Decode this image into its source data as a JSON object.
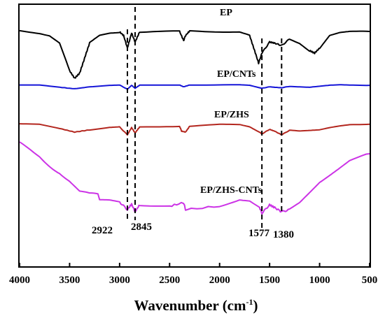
{
  "chart_data": {
    "type": "line",
    "xlabel": "Wavenumber (cm",
    "xlabel_sup": "-1",
    "xlabel_close": ")",
    "xlim": [
      4000,
      500
    ],
    "x_ticks": [
      "4000",
      "3500",
      "3000",
      "2500",
      "2000",
      "1500",
      "1000",
      "500"
    ],
    "y_ticks_shown": false,
    "grid": false,
    "peak_markers": [
      {
        "wavenumber": 2922,
        "label": "2922"
      },
      {
        "wavenumber": 2845,
        "label": "2845"
      },
      {
        "wavenumber": 1577,
        "label": "1577"
      },
      {
        "wavenumber": 1380,
        "label": "1380"
      }
    ],
    "series": [
      {
        "name": "EP",
        "color": "#000000",
        "points": [
          [
            4000,
            0.95
          ],
          [
            3800,
            0.9
          ],
          [
            3700,
            0.85
          ],
          [
            3600,
            0.7
          ],
          [
            3500,
            0.15
          ],
          [
            3450,
            0.0
          ],
          [
            3400,
            0.1
          ],
          [
            3350,
            0.4
          ],
          [
            3300,
            0.7
          ],
          [
            3200,
            0.85
          ],
          [
            3100,
            0.9
          ],
          [
            3000,
            0.92
          ],
          [
            2960,
            0.85
          ],
          [
            2922,
            0.6
          ],
          [
            2880,
            0.9
          ],
          [
            2845,
            0.72
          ],
          [
            2800,
            0.92
          ],
          [
            2400,
            0.93
          ],
          [
            2360,
            0.75
          ],
          [
            2340,
            0.85
          ],
          [
            2300,
            0.94
          ],
          [
            2000,
            0.93
          ],
          [
            1800,
            0.92
          ],
          [
            1700,
            0.85
          ],
          [
            1650,
            0.55
          ],
          [
            1610,
            0.3
          ],
          [
            1577,
            0.5
          ],
          [
            1500,
            0.72
          ],
          [
            1450,
            0.7
          ],
          [
            1380,
            0.65
          ],
          [
            1300,
            0.78
          ],
          [
            1200,
            0.7
          ],
          [
            1100,
            0.55
          ],
          [
            1050,
            0.5
          ],
          [
            1000,
            0.6
          ],
          [
            900,
            0.85
          ],
          [
            800,
            0.9
          ],
          [
            700,
            0.92
          ],
          [
            500,
            0.93
          ]
        ]
      },
      {
        "name": "EP/CNTs",
        "color": "#1515d8",
        "points": [
          [
            4000,
            0.9
          ],
          [
            3800,
            0.88
          ],
          [
            3600,
            0.65
          ],
          [
            3450,
            0.5
          ],
          [
            3300,
            0.7
          ],
          [
            3100,
            0.86
          ],
          [
            3000,
            0.88
          ],
          [
            2922,
            0.45
          ],
          [
            2880,
            0.85
          ],
          [
            2845,
            0.55
          ],
          [
            2800,
            0.86
          ],
          [
            2400,
            0.88
          ],
          [
            2360,
            0.7
          ],
          [
            2300,
            0.88
          ],
          [
            1800,
            0.9
          ],
          [
            1700,
            0.85
          ],
          [
            1600,
            0.6
          ],
          [
            1577,
            0.55
          ],
          [
            1500,
            0.7
          ],
          [
            1450,
            0.65
          ],
          [
            1380,
            0.6
          ],
          [
            1300,
            0.75
          ],
          [
            1200,
            0.7
          ],
          [
            1100,
            0.65
          ],
          [
            1000,
            0.75
          ],
          [
            900,
            0.85
          ],
          [
            800,
            0.9
          ],
          [
            700,
            0.88
          ],
          [
            500,
            0.85
          ]
        ]
      },
      {
        "name": "EP/ZHS",
        "color": "#b3261e",
        "points": [
          [
            4000,
            0.95
          ],
          [
            3800,
            0.92
          ],
          [
            3600,
            0.7
          ],
          [
            3450,
            0.5
          ],
          [
            3300,
            0.62
          ],
          [
            3100,
            0.75
          ],
          [
            3000,
            0.78
          ],
          [
            2922,
            0.35
          ],
          [
            2880,
            0.75
          ],
          [
            2845,
            0.45
          ],
          [
            2800,
            0.78
          ],
          [
            2400,
            0.82
          ],
          [
            2380,
            0.55
          ],
          [
            2340,
            0.5
          ],
          [
            2300,
            0.82
          ],
          [
            2000,
            0.92
          ],
          [
            1800,
            0.92
          ],
          [
            1700,
            0.8
          ],
          [
            1600,
            0.5
          ],
          [
            1577,
            0.4
          ],
          [
            1500,
            0.65
          ],
          [
            1450,
            0.55
          ],
          [
            1380,
            0.35
          ],
          [
            1300,
            0.6
          ],
          [
            1200,
            0.55
          ],
          [
            1100,
            0.58
          ],
          [
            1000,
            0.62
          ],
          [
            900,
            0.75
          ],
          [
            800,
            0.85
          ],
          [
            700,
            0.92
          ],
          [
            500,
            0.93
          ]
        ]
      },
      {
        "name": "EP/ZHS-CNTs",
        "color": "#cc33e6",
        "points": [
          [
            4000,
            0.95
          ],
          [
            3900,
            0.9
          ],
          [
            3800,
            0.85
          ],
          [
            3700,
            0.75
          ],
          [
            3600,
            0.65
          ],
          [
            3500,
            0.5
          ],
          [
            3400,
            0.3
          ],
          [
            3300,
            0.22
          ],
          [
            3200,
            0.18
          ],
          [
            3100,
            0.18
          ],
          [
            3000,
            0.16
          ],
          [
            2922,
            0.05
          ],
          [
            2880,
            0.13
          ],
          [
            2845,
            0.02
          ],
          [
            2800,
            0.12
          ],
          [
            2500,
            0.1
          ],
          [
            2360,
            0.15
          ],
          [
            2340,
            0.05
          ],
          [
            2000,
            0.1
          ],
          [
            1800,
            0.2
          ],
          [
            1700,
            0.18
          ],
          [
            1600,
            0.08
          ],
          [
            1577,
            0.0
          ],
          [
            1500,
            0.12
          ],
          [
            1450,
            0.08
          ],
          [
            1380,
            0.02
          ],
          [
            1300,
            0.05
          ],
          [
            1200,
            0.15
          ],
          [
            1100,
            0.3
          ],
          [
            1000,
            0.45
          ],
          [
            900,
            0.55
          ],
          [
            800,
            0.65
          ],
          [
            700,
            0.75
          ],
          [
            500,
            0.85
          ]
        ]
      }
    ]
  }
}
